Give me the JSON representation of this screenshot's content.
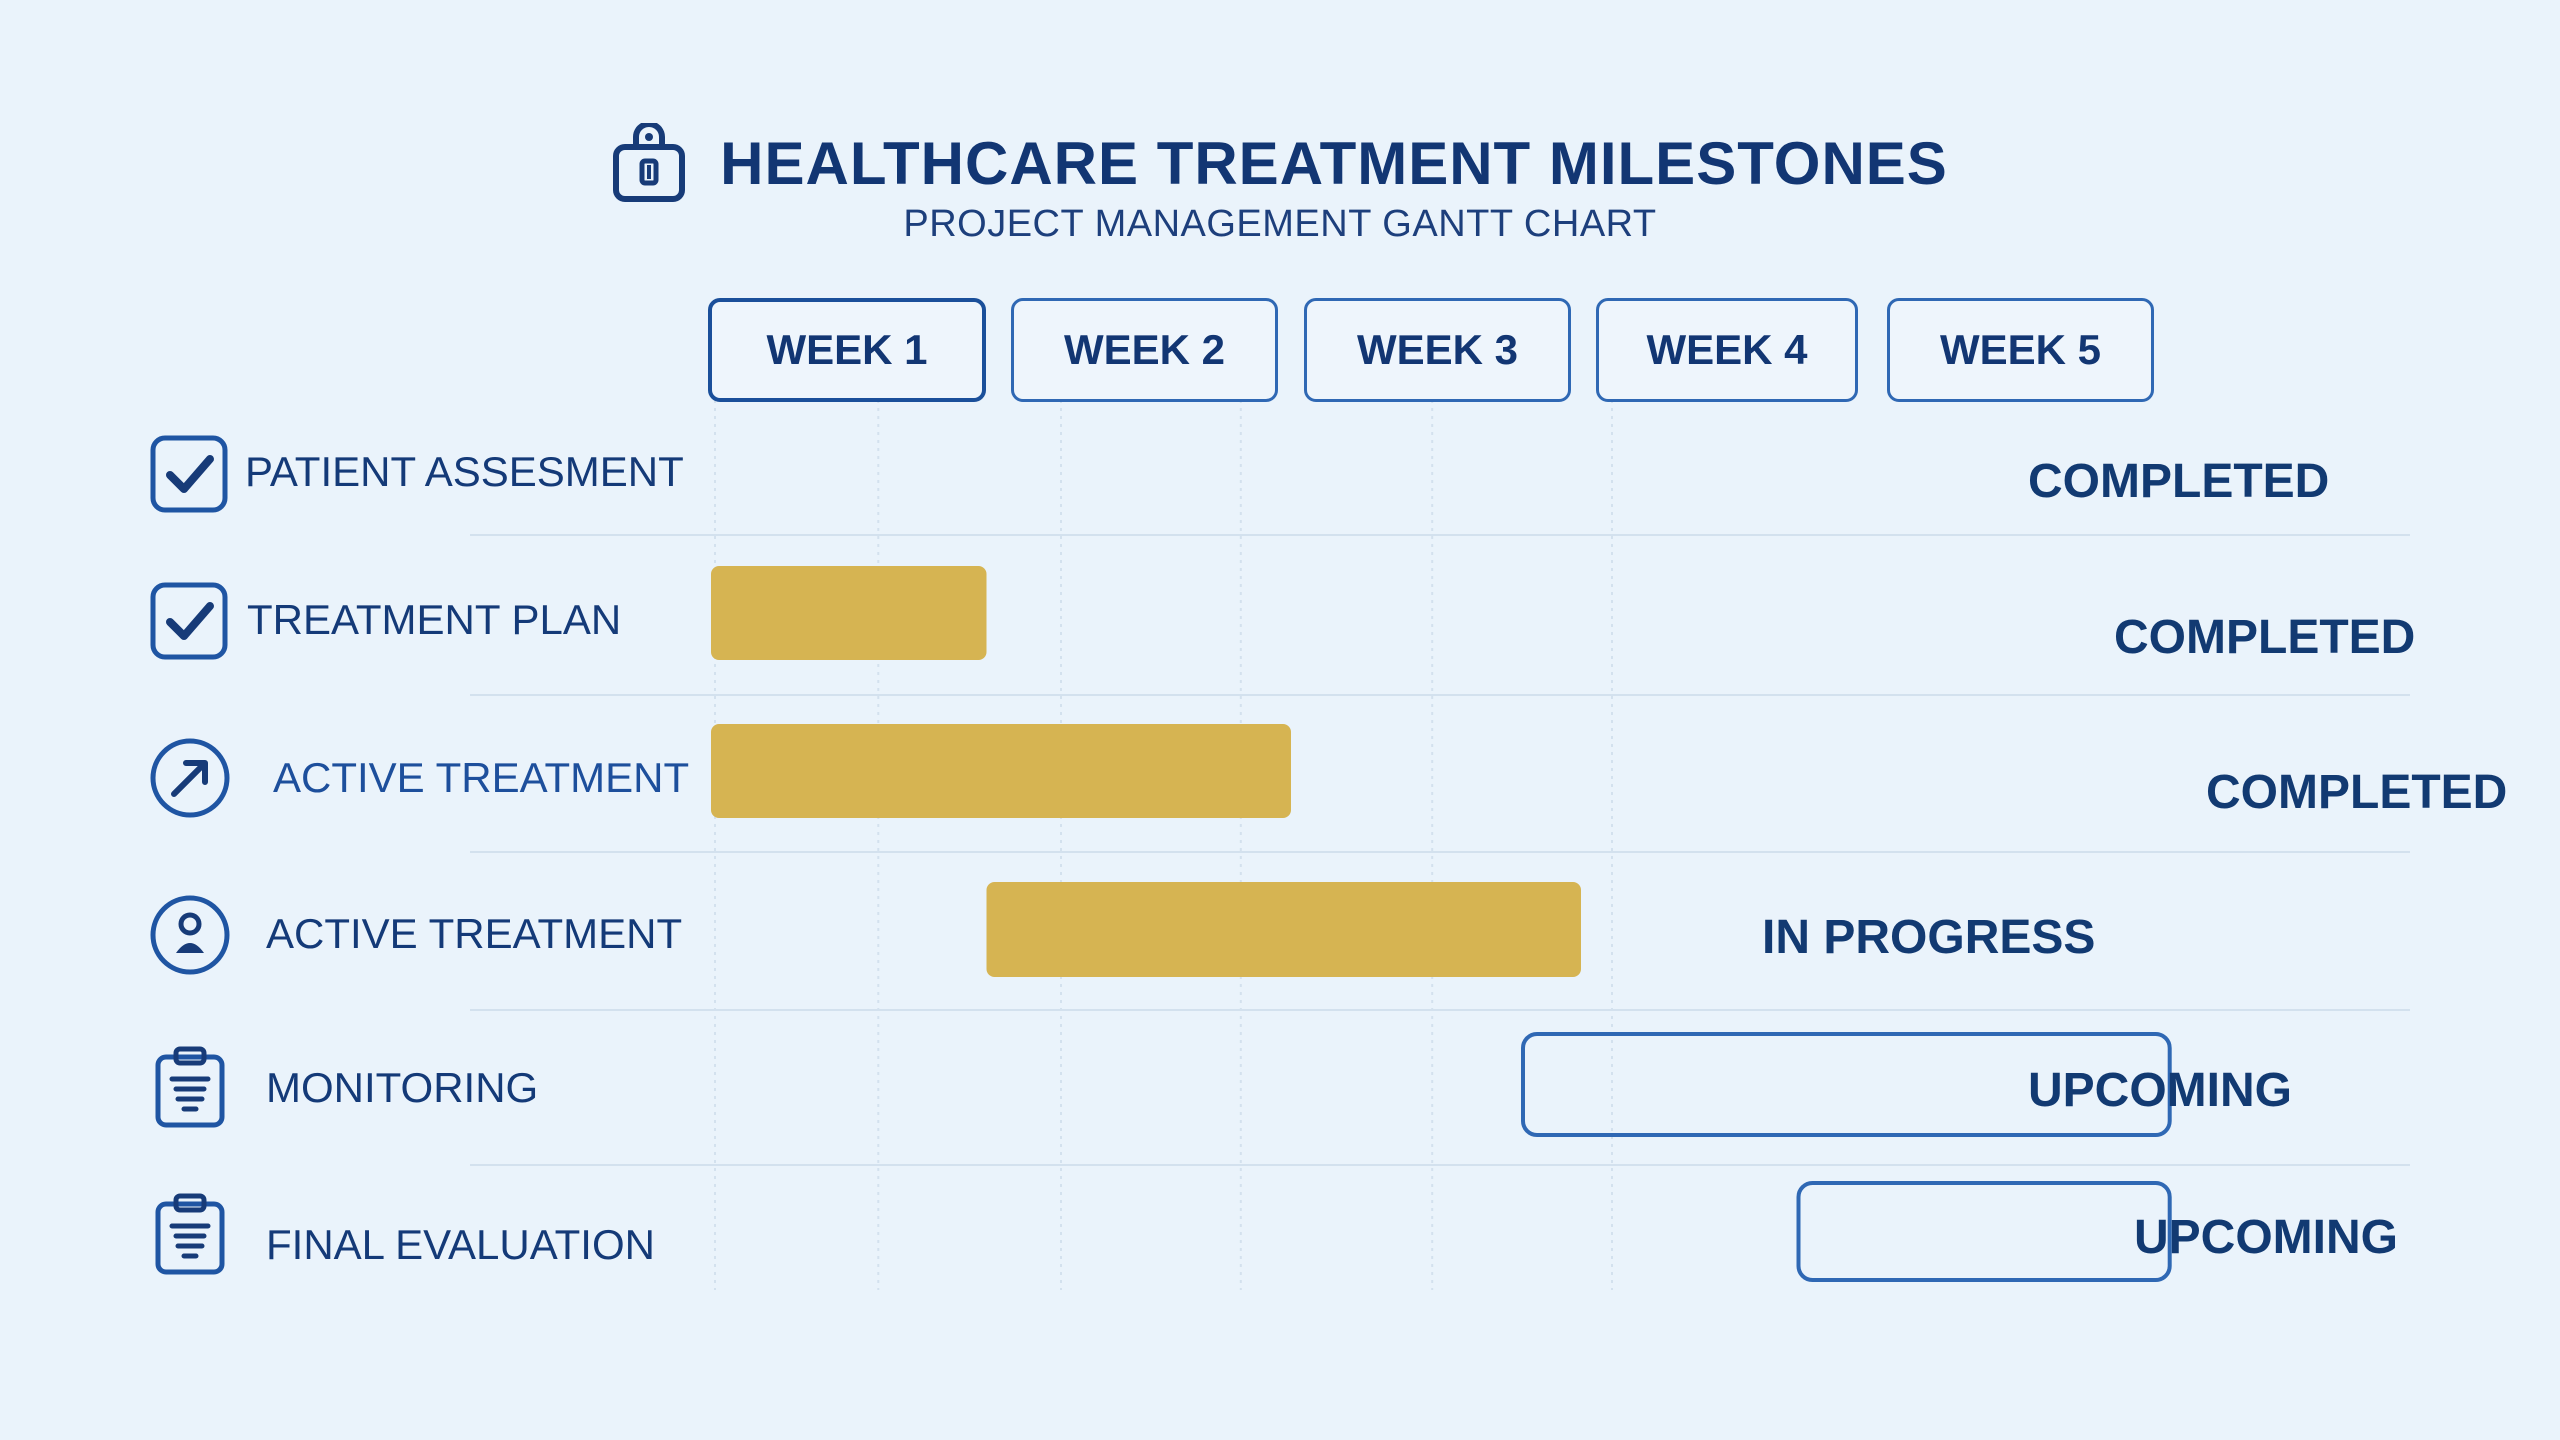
{
  "header": {
    "title": "HEALTHCARE TREATMENT MILESTONES",
    "subtitle": "PROJECT MANAGEMENT GANTT CHART",
    "title_icon": "medical-bag-icon"
  },
  "colors": {
    "background": "#eaf3fb",
    "text": "#123673",
    "bar_fill": "#d6b452",
    "outline": "#2f68b4",
    "grid": "#d3e1ee"
  },
  "chart_data": {
    "type": "gantt",
    "title": "HEALTHCARE TREATMENT MILESTONES",
    "subtitle": "PROJECT MANAGEMENT GANTT CHART",
    "x_unit": "week",
    "xlim": [
      0,
      5
    ],
    "weeks": [
      "WEEK 1",
      "WEEK 2",
      "WEEK 3",
      "WEEK 4",
      "WEEK 5"
    ],
    "tasks": [
      {
        "label": "PATIENT ASSESMENT",
        "icon": "checkbox-checked-icon",
        "status": "COMPLETED",
        "bar": null
      },
      {
        "label": "TREATMENT PLAN",
        "icon": "checkbox-checked-icon",
        "status": "COMPLETED",
        "bar": {
          "start": 0,
          "end": 0.95,
          "style": "filled"
        }
      },
      {
        "label": "ACTIVE TREATMENT",
        "icon": "progress-arrow-icon",
        "status": "COMPLETED",
        "bar": {
          "start": 0,
          "end": 2,
          "style": "filled"
        }
      },
      {
        "label": "ACTIVE TREATMENT",
        "icon": "patient-icon",
        "status": "IN PROGRESS",
        "bar": {
          "start": 0.95,
          "end": 3,
          "style": "filled"
        }
      },
      {
        "label": "MONITORING",
        "icon": "clipboard-icon",
        "status": "UPCOMING",
        "bar": {
          "start": 2.8,
          "end": 5.03,
          "style": "outline"
        }
      },
      {
        "label": "FINAL EVALUATION",
        "icon": "clipboard-icon",
        "status": "UPCOMING",
        "bar": {
          "start": 3.75,
          "end": 5.03,
          "style": "outline"
        }
      }
    ]
  }
}
